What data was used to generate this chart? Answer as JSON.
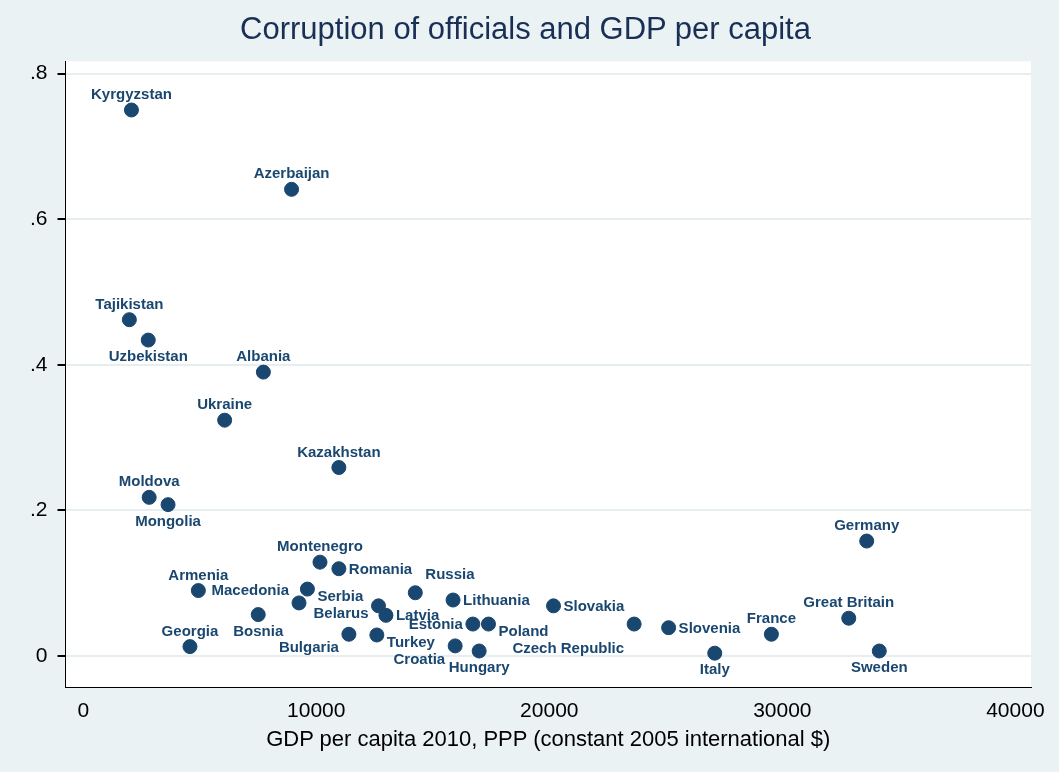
{
  "chart_data": {
    "type": "scatter",
    "title": "Corruption of officials and GDP per capita",
    "xlabel": "GDP per capita 2010, PPP (constant 2005 international $)",
    "xlim": [
      -760,
      40670
    ],
    "xticks": [
      0,
      10000,
      20000,
      30000,
      40000
    ],
    "ylim": [
      -0.043,
      0.817
    ],
    "yticks": [
      {
        "value": 0,
        "label": "0"
      },
      {
        "value": 0.2,
        "label": ".2"
      },
      {
        "value": 0.4,
        "label": ".4"
      },
      {
        "value": 0.6,
        "label": ".6"
      },
      {
        "value": 0.8,
        "label": ".8"
      }
    ],
    "grid": "y",
    "legend": false,
    "marker": "circle",
    "series": [
      {
        "name": "Kyrgyzstan",
        "color": "#1a476f",
        "x": [
          2070
        ],
        "values": [
          0.75
        ]
      },
      {
        "name": "Azerbaijan",
        "color": "#1a476f",
        "x": [
          8940
        ],
        "values": [
          0.641
        ]
      },
      {
        "name": "Tajikistan",
        "color": "#1a476f",
        "x": [
          1980
        ],
        "values": [
          0.462
        ]
      },
      {
        "name": "Uzbekistan",
        "color": "#1a476f",
        "x": [
          2790
        ],
        "values": [
          0.434
        ]
      },
      {
        "name": "Albania",
        "color": "#1a476f",
        "x": [
          7730
        ],
        "values": [
          0.39
        ]
      },
      {
        "name": "Ukraine",
        "color": "#1a476f",
        "x": [
          6070
        ],
        "values": [
          0.324
        ]
      },
      {
        "name": "Kazakhstan",
        "color": "#1a476f",
        "x": [
          10970
        ],
        "values": [
          0.259
        ]
      },
      {
        "name": "Moldova",
        "color": "#1a476f",
        "x": [
          2830
        ],
        "values": [
          0.218
        ]
      },
      {
        "name": "Mongolia",
        "color": "#1a476f",
        "x": [
          3640
        ],
        "values": [
          0.208
        ]
      },
      {
        "name": "Montenegro",
        "color": "#1a476f",
        "x": [
          10160
        ],
        "values": [
          0.129
        ]
      },
      {
        "name": "Romania",
        "color": "#1a476f",
        "x": [
          10970
        ],
        "values": [
          0.12
        ]
      },
      {
        "name": "Armenia",
        "color": "#1a476f",
        "x": [
          4940
        ],
        "values": [
          0.09
        ]
      },
      {
        "name": "Serbia",
        "color": "#1a476f",
        "x": [
          9620
        ],
        "values": [
          0.092
        ]
      },
      {
        "name": "Macedonia",
        "color": "#1a476f",
        "x": [
          9260
        ],
        "values": [
          0.073
        ]
      },
      {
        "name": "Belarus",
        "color": "#1a476f",
        "x": [
          12670
        ],
        "values": [
          0.069
        ]
      },
      {
        "name": "Russia",
        "color": "#1a476f",
        "x": [
          14250
        ],
        "values": [
          0.087
        ]
      },
      {
        "name": "Lithuania",
        "color": "#1a476f",
        "x": [
          15870
        ],
        "values": [
          0.077
        ]
      },
      {
        "name": "Bosnia",
        "color": "#1a476f",
        "x": [
          7510
        ],
        "values": [
          0.057
        ]
      },
      {
        "name": "Latvia",
        "color": "#1a476f",
        "x": [
          12990
        ],
        "values": [
          0.056
        ]
      },
      {
        "name": "Georgia",
        "color": "#1a476f",
        "x": [
          4580
        ],
        "values": [
          0.013
        ]
      },
      {
        "name": "Bulgaria",
        "color": "#1a476f",
        "x": [
          11400
        ],
        "values": [
          0.03
        ]
      },
      {
        "name": "Turkey",
        "color": "#1a476f",
        "x": [
          12600
        ],
        "values": [
          0.029
        ]
      },
      {
        "name": "Croatia",
        "color": "#1a476f",
        "x": [
          15960
        ],
        "values": [
          0.014
        ]
      },
      {
        "name": "Hungary",
        "color": "#1a476f",
        "x": [
          16990
        ],
        "values": [
          0.007
        ]
      },
      {
        "name": "Estonia",
        "color": "#1a476f",
        "x": [
          16720
        ],
        "values": [
          0.044
        ]
      },
      {
        "name": "Poland",
        "color": "#1a476f",
        "x": [
          17390
        ],
        "values": [
          0.044
        ]
      },
      {
        "name": "Slovakia",
        "color": "#1a476f",
        "x": [
          20180
        ],
        "values": [
          0.069
        ]
      },
      {
        "name": "Czech Republic",
        "color": "#1a476f",
        "x": [
          23640
        ],
        "values": [
          0.044
        ]
      },
      {
        "name": "Slovenia",
        "color": "#1a476f",
        "x": [
          25120
        ],
        "values": [
          0.039
        ]
      },
      {
        "name": "France",
        "color": "#1a476f",
        "x": [
          29530
        ],
        "values": [
          0.03
        ]
      },
      {
        "name": "Italy",
        "color": "#1a476f",
        "x": [
          27100
        ],
        "values": [
          0.004
        ]
      },
      {
        "name": "Germany",
        "color": "#1a476f",
        "x": [
          33620
        ],
        "values": [
          0.158
        ]
      },
      {
        "name": "Great Britain",
        "color": "#1a476f",
        "x": [
          32850
        ],
        "values": [
          0.052
        ]
      },
      {
        "name": "Sweden",
        "color": "#1a476f",
        "x": [
          34160
        ],
        "values": [
          0.007
        ]
      }
    ]
  }
}
